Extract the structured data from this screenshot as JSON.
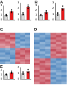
{
  "chart_data": [
    {
      "type": "bar",
      "title": "A",
      "categories": [
        null,
        null
      ],
      "values": [
        1.0,
        1.8
      ],
      "colors": [
        "#d9d9d9",
        "#e41a1c"
      ],
      "points": [
        [
          0.8,
          1.1,
          1.0
        ],
        [
          1.5,
          2.1,
          1.8
        ]
      ],
      "ylim": [
        0,
        3
      ],
      "yticks": [
        0,
        1,
        2,
        3
      ],
      "grid": false,
      "tick_labels": "y"
    },
    {
      "type": "bar",
      "categories": [
        null,
        null
      ],
      "values": [
        1.0,
        2.3
      ],
      "colors": [
        "#d9d9d9",
        "#e41a1c"
      ],
      "points": [
        [
          0.9,
          1.2,
          0.9
        ],
        [
          2.0,
          2.6,
          2.3
        ]
      ],
      "ylim": [
        0,
        3
      ],
      "yticks": [
        0,
        1,
        2,
        3
      ],
      "grid": false,
      "tick_labels": "y"
    },
    {
      "type": "bar",
      "title": "B",
      "categories": [
        null,
        null
      ],
      "values": [
        1.0,
        1.6
      ],
      "colors": [
        "#d9d9d9",
        "#e41a1c"
      ],
      "points": [
        [
          0.9,
          1.1,
          1.0
        ],
        [
          1.3,
          1.9,
          1.6
        ]
      ],
      "ylim": [
        0,
        3
      ],
      "yticks": [
        0,
        1,
        2,
        3
      ],
      "grid": false,
      "tick_labels": "y"
    },
    {
      "type": "bar",
      "categories": [
        null,
        null
      ],
      "values": [
        1.0,
        2.0
      ],
      "colors": [
        "#d9d9d9",
        "#e41a1c"
      ],
      "points": [
        [
          0.8,
          1.2,
          1.0
        ],
        [
          1.7,
          2.4,
          1.9
        ]
      ],
      "ylim": [
        0,
        3
      ],
      "yticks": [
        0,
        1,
        2,
        3
      ],
      "grid": false,
      "tick_labels": "y"
    },
    {
      "type": "heatmap",
      "title": "C",
      "zlim": [
        -2,
        2
      ],
      "tick_labels": false,
      "cells": [
        [
          1.5,
          1.2,
          1.4,
          -1.3,
          -1.1,
          -1.5
        ],
        [
          1.3,
          1.5,
          1.1,
          -1.2,
          -1.4,
          -1.0
        ],
        [
          1.1,
          1.4,
          1.6,
          -1.5,
          -1.2,
          -1.3
        ],
        [
          1.4,
          1.0,
          1.2,
          -1.1,
          -1.5,
          -1.2
        ],
        [
          1.2,
          1.3,
          0.9,
          -1.4,
          -1.0,
          -1.1
        ],
        [
          0.9,
          1.1,
          1.3,
          -1.0,
          -1.3,
          -1.4
        ],
        [
          1.0,
          0.8,
          1.2,
          -1.2,
          -0.9,
          -1.1
        ],
        [
          -1.2,
          -1.0,
          -1.3,
          1.1,
          1.4,
          1.2
        ],
        [
          -1.4,
          -1.3,
          -1.1,
          1.3,
          1.2,
          1.5
        ],
        [
          -1.1,
          -1.5,
          -1.2,
          1.5,
          1.1,
          1.3
        ],
        [
          -1.3,
          -1.2,
          -1.4,
          1.2,
          1.5,
          1.1
        ],
        [
          -1.0,
          -1.1,
          -1.5,
          1.4,
          1.3,
          1.0
        ],
        [
          -1.5,
          -1.4,
          -1.0,
          1.0,
          1.2,
          1.4
        ],
        [
          -1.2,
          -0.9,
          -1.1,
          1.3,
          1.0,
          1.2
        ]
      ]
    },
    {
      "type": "heatmap",
      "title": "D",
      "zlim": [
        -2,
        2
      ],
      "tick_labels": false,
      "cells": [
        [
          -1.2,
          -1.4,
          -1.0,
          1.3,
          1.1,
          1.5
        ],
        [
          -1.4,
          -1.1,
          -1.3,
          1.2,
          1.5,
          1.1
        ],
        [
          -1.0,
          -1.3,
          -1.5,
          1.5,
          1.2,
          1.3
        ],
        [
          -1.3,
          -1.5,
          -1.1,
          1.1,
          1.4,
          1.2
        ],
        [
          -1.5,
          -1.0,
          -1.2,
          1.4,
          1.0,
          1.4
        ],
        [
          -1.1,
          -1.2,
          -1.4,
          1.0,
          1.3,
          1.1
        ],
        [
          -1.3,
          -1.1,
          -0.9,
          1.2,
          1.1,
          1.5
        ],
        [
          -0.9,
          -1.4,
          -1.2,
          1.5,
          1.2,
          1.0
        ],
        [
          -1.2,
          -1.0,
          -1.3,
          1.1,
          1.5,
          1.3
        ],
        [
          -1.4,
          -1.3,
          -1.0,
          1.3,
          1.0,
          1.2
        ],
        [
          -1.0,
          -1.2,
          -1.4,
          1.2,
          1.3,
          1.4
        ],
        [
          1.3,
          1.1,
          1.4,
          -1.2,
          -1.5,
          -1.1
        ],
        [
          1.1,
          1.5,
          1.2,
          -1.4,
          -1.1,
          -1.3
        ],
        [
          1.5,
          1.2,
          1.0,
          -1.1,
          -1.3,
          -1.5
        ],
        [
          1.2,
          1.4,
          1.3,
          -1.5,
          -1.2,
          -1.0
        ],
        [
          1.0,
          1.3,
          1.5,
          -1.3,
          -1.4,
          -1.2
        ],
        [
          1.4,
          1.0,
          1.1,
          -1.0,
          -1.2,
          -1.4
        ],
        [
          1.2,
          1.5,
          1.4,
          -1.4,
          -1.0,
          -1.1
        ],
        [
          1.5,
          1.1,
          1.2,
          -1.2,
          -1.3,
          -1.5
        ],
        [
          1.1,
          1.3,
          1.0,
          -1.5,
          -1.1,
          -1.2
        ],
        [
          1.3,
          1.2,
          1.5,
          -1.1,
          -1.4,
          -1.3
        ],
        [
          1.0,
          1.4,
          1.2,
          -1.3,
          -1.2,
          -1.0
        ]
      ]
    },
    {
      "type": "bar",
      "title": "E",
      "categories": [
        null,
        null
      ],
      "values": [
        1.0,
        1.5
      ],
      "colors": [
        "#d9d9d9",
        "#e41a1c"
      ],
      "points": [
        [
          0.9,
          1.1,
          1.0
        ],
        [
          1.2,
          1.8,
          1.5
        ]
      ],
      "ylim": [
        0,
        2
      ],
      "yticks": [
        0,
        1,
        2
      ],
      "grid": false,
      "tick_labels": "y"
    },
    {
      "type": "bar",
      "categories": [
        null,
        null
      ],
      "values": [
        1.0,
        1.3
      ],
      "colors": [
        "#d9d9d9",
        "#e41a1c"
      ],
      "points": [
        [
          0.8,
          1.2,
          1.0
        ],
        [
          1.1,
          1.6,
          1.2
        ]
      ],
      "ylim": [
        0,
        2
      ],
      "yticks": [
        0,
        1,
        2
      ],
      "grid": false,
      "tick_labels": "y"
    }
  ]
}
